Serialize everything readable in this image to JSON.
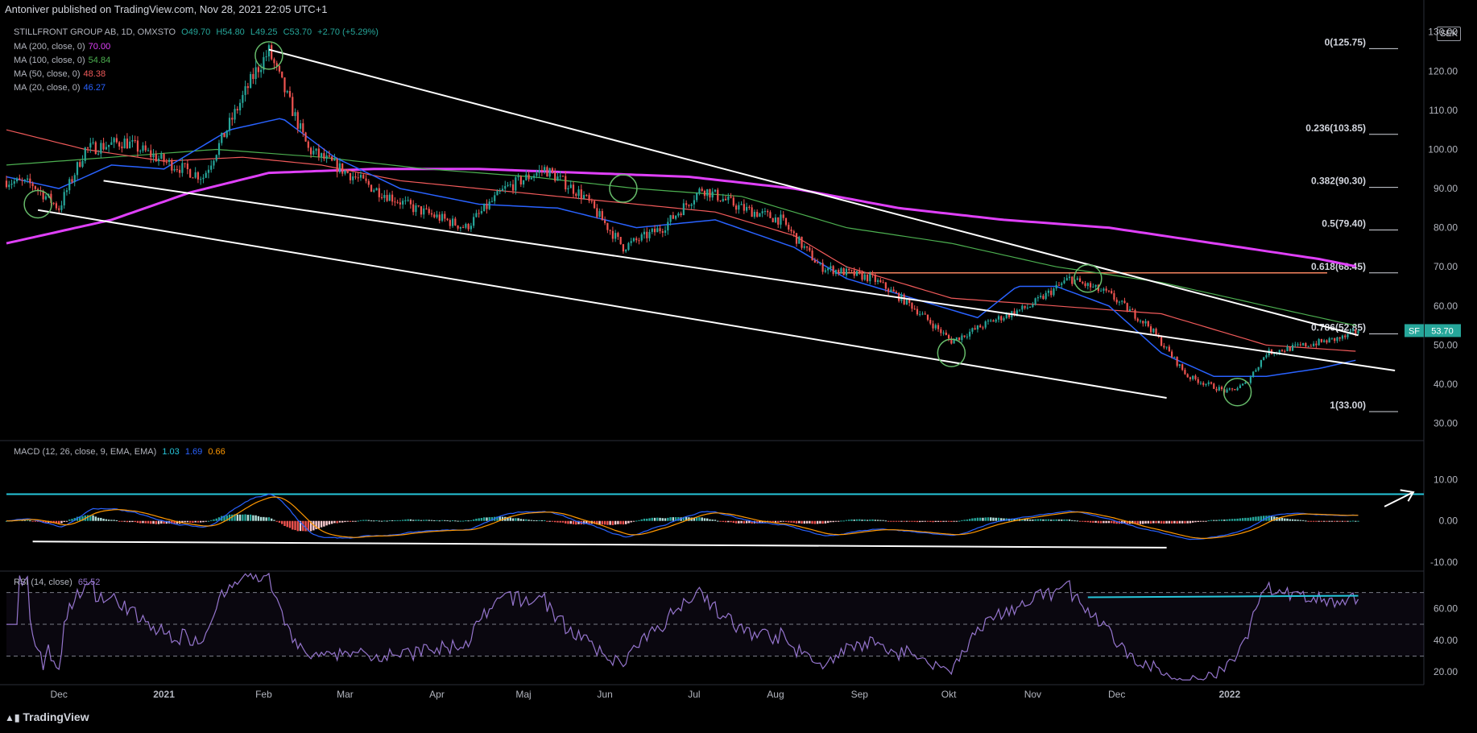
{
  "header": {
    "publisher": "Antoniver published on TradingView.com, Nov 28, 2021 22:05 UTC+1"
  },
  "footer": {
    "brand": "TradingView"
  },
  "currency": "SEK",
  "legend": {
    "symbol": "STILLFRONT GROUP AB, 1D, OMXSTO",
    "ohlc": {
      "open": "O49.70",
      "high": "H54.80",
      "low": "L49.25",
      "close": "C53.70",
      "change": "+2.70 (+5.29%)"
    },
    "mas": [
      {
        "label": "MA (200, close, 0)",
        "value": "70.00",
        "color": "#e040fb"
      },
      {
        "label": "MA (100, close, 0)",
        "value": "54.84",
        "color": "#4caf50"
      },
      {
        "label": "MA (50, close, 0)",
        "value": "48.38",
        "color": "#f05a5a"
      },
      {
        "label": "MA (20, close, 0)",
        "value": "46.27",
        "color": "#2962ff"
      }
    ],
    "macd": {
      "label": "MACD (12, 26, close, 9, EMA, EMA)",
      "hist": "1.03",
      "macd": "1.69",
      "signal": "0.66"
    },
    "rsi": {
      "label": "RSI (14, close)",
      "value": "65.52"
    }
  },
  "colors": {
    "up": "#26a69a",
    "down": "#ef5350",
    "ma200": "#e040fb",
    "ma100": "#4caf50",
    "ma50": "#f05a5a",
    "ma20": "#2962ff",
    "rsi": "#9575cd",
    "macd_signal": "#ff9800",
    "teal_line": "#26c6da"
  },
  "chart_data": {
    "type": "candlestick",
    "x_ticks": [
      "Dec",
      "2021",
      "Feb",
      "Mar",
      "Apr",
      "Maj",
      "Jun",
      "Jul",
      "Aug",
      "Sep",
      "Okt",
      "Nov",
      "Dec",
      "2022"
    ],
    "price_axis": {
      "ticks": [
        "130.00",
        "120.00",
        "110.00",
        "100.00",
        "90.00",
        "80.00",
        "70.00",
        "60.00",
        "50.00",
        "40.00",
        "30.00"
      ],
      "range": [
        26,
        132
      ]
    },
    "last_price": {
      "symbol": "SF",
      "value": "53.70"
    },
    "fibonacci": [
      {
        "label": "0(125.75)",
        "price": 125.75
      },
      {
        "label": "0.236(103.85)",
        "price": 103.85
      },
      {
        "label": "0.382(90.30)",
        "price": 90.3
      },
      {
        "label": "0.5(79.40)",
        "price": 79.4
      },
      {
        "label": "0.618(68.45)",
        "price": 68.45
      },
      {
        "label": "0.786(52.85)",
        "price": 52.85
      },
      {
        "label": "1(33.00)",
        "price": 33.0
      }
    ],
    "price_path": [
      [
        0,
        92
      ],
      [
        10,
        91
      ],
      [
        20,
        85
      ],
      [
        30,
        100
      ],
      [
        45,
        102
      ],
      [
        60,
        97
      ],
      [
        75,
        93
      ],
      [
        95,
        120
      ],
      [
        100,
        125
      ],
      [
        115,
        100
      ],
      [
        125,
        96
      ],
      [
        140,
        90
      ],
      [
        155,
        85
      ],
      [
        175,
        80
      ],
      [
        190,
        90
      ],
      [
        205,
        95
      ],
      [
        220,
        88
      ],
      [
        235,
        75
      ],
      [
        250,
        80
      ],
      [
        265,
        90
      ],
      [
        280,
        85
      ],
      [
        295,
        82
      ],
      [
        310,
        70
      ],
      [
        330,
        67
      ],
      [
        345,
        60
      ],
      [
        360,
        51
      ],
      [
        375,
        56
      ],
      [
        390,
        60
      ],
      [
        405,
        67
      ],
      [
        420,
        63
      ],
      [
        435,
        55
      ],
      [
        450,
        42
      ],
      [
        465,
        38
      ],
      [
        472,
        40
      ],
      [
        480,
        48
      ],
      [
        495,
        50
      ],
      [
        510,
        52
      ],
      [
        515,
        53.7
      ]
    ],
    "ma_paths": {
      "ma200": [
        [
          0,
          76
        ],
        [
          40,
          82
        ],
        [
          70,
          89
        ],
        [
          100,
          94
        ],
        [
          140,
          95
        ],
        [
          180,
          95
        ],
        [
          220,
          94
        ],
        [
          260,
          93
        ],
        [
          300,
          90
        ],
        [
          340,
          85
        ],
        [
          380,
          82
        ],
        [
          420,
          80
        ],
        [
          460,
          76
        ],
        [
          500,
          72
        ],
        [
          515,
          70
        ]
      ],
      "ma100": [
        [
          0,
          96
        ],
        [
          40,
          98
        ],
        [
          80,
          100
        ],
        [
          120,
          98
        ],
        [
          160,
          95
        ],
        [
          200,
          93
        ],
        [
          240,
          90
        ],
        [
          280,
          88
        ],
        [
          320,
          80
        ],
        [
          360,
          76
        ],
        [
          400,
          70
        ],
        [
          440,
          66
        ],
        [
          480,
          60
        ],
        [
          515,
          54.84
        ]
      ],
      "ma50": [
        [
          0,
          105
        ],
        [
          30,
          100
        ],
        [
          60,
          97
        ],
        [
          90,
          98
        ],
        [
          120,
          96
        ],
        [
          150,
          92
        ],
        [
          180,
          90
        ],
        [
          210,
          88
        ],
        [
          240,
          86
        ],
        [
          270,
          84
        ],
        [
          300,
          78
        ],
        [
          320,
          70
        ],
        [
          360,
          62
        ],
        [
          400,
          60
        ],
        [
          440,
          58
        ],
        [
          480,
          50
        ],
        [
          515,
          48.38
        ]
      ],
      "ma20": [
        [
          0,
          93
        ],
        [
          20,
          90
        ],
        [
          40,
          96
        ],
        [
          60,
          95
        ],
        [
          85,
          105
        ],
        [
          105,
          108
        ],
        [
          125,
          98
        ],
        [
          150,
          90
        ],
        [
          180,
          86
        ],
        [
          210,
          85
        ],
        [
          240,
          80
        ],
        [
          270,
          82
        ],
        [
          300,
          75
        ],
        [
          320,
          67
        ],
        [
          345,
          62
        ],
        [
          370,
          57
        ],
        [
          385,
          65
        ],
        [
          400,
          65
        ],
        [
          420,
          60
        ],
        [
          440,
          48
        ],
        [
          460,
          42
        ],
        [
          480,
          42
        ],
        [
          500,
          44
        ],
        [
          515,
          46.27
        ]
      ]
    },
    "macd_axis": {
      "ticks": [
        "10.00",
        "0.00",
        "-10.00"
      ],
      "range": [
        -12,
        16
      ]
    },
    "rsi_axis": {
      "ticks": [
        "60.00",
        "40.00",
        "20.00"
      ],
      "range": [
        13,
        83
      ],
      "bands": [
        70,
        50,
        30
      ]
    }
  }
}
